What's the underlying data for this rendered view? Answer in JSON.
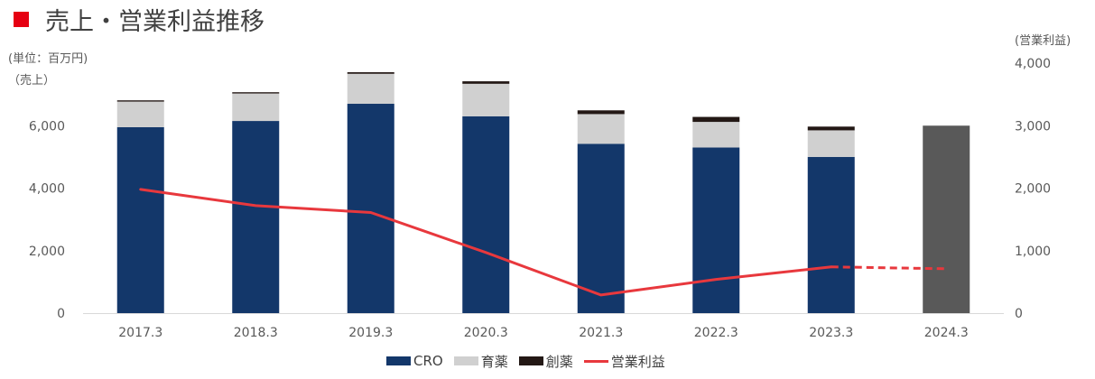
{
  "header": {
    "title": "売上・営業利益推移"
  },
  "axis_labels": {
    "left_unit": "(単位：百万円)",
    "left": "（売上）",
    "right": "(営業利益)"
  },
  "colors": {
    "title_mark": "#e60012",
    "cro": "#13376a",
    "ikuyaku": "#d0d0d0",
    "souyaku": "#231815",
    "forecast_bar": "#595959",
    "profit_line": "#e8383d",
    "grid": "#d9d9d9"
  },
  "chart_data": {
    "type": "bar",
    "stacked": true,
    "categories": [
      "2017.3",
      "2018.3",
      "2019.3",
      "2020.3",
      "2021.3",
      "2022.3",
      "2023.3",
      "2024.3"
    ],
    "series": [
      {
        "name": "CRO",
        "values": [
          5950,
          6150,
          6700,
          6300,
          5420,
          5300,
          5000,
          null
        ]
      },
      {
        "name": "育薬",
        "values": [
          820,
          880,
          960,
          1040,
          950,
          820,
          850,
          null
        ]
      },
      {
        "name": "創薬",
        "values": [
          40,
          40,
          50,
          80,
          120,
          160,
          120,
          null
        ]
      }
    ],
    "forecast_total": [
      null,
      null,
      null,
      null,
      null,
      null,
      null,
      6000
    ],
    "line_series": {
      "name": "営業利益",
      "axis": "right",
      "values": [
        1980,
        1720,
        1610,
        970,
        290,
        540,
        740,
        710
      ],
      "forecast_from_index": 6
    },
    "y_left": {
      "min": 0,
      "max": 8000,
      "ticks": [
        0,
        2000,
        4000,
        6000
      ],
      "tick_labels": [
        "0",
        "2,000",
        "4,000",
        "6,000"
      ]
    },
    "y_right": {
      "min": 0,
      "max": 4000,
      "ticks": [
        0,
        1000,
        2000,
        3000,
        4000
      ],
      "tick_labels": [
        "0",
        "1,000",
        "2,000",
        "3,000",
        "4,000"
      ]
    },
    "legend": [
      "CRO",
      "育薬",
      "創薬",
      "営業利益"
    ],
    "legend_position": "bottom",
    "grid": false
  }
}
